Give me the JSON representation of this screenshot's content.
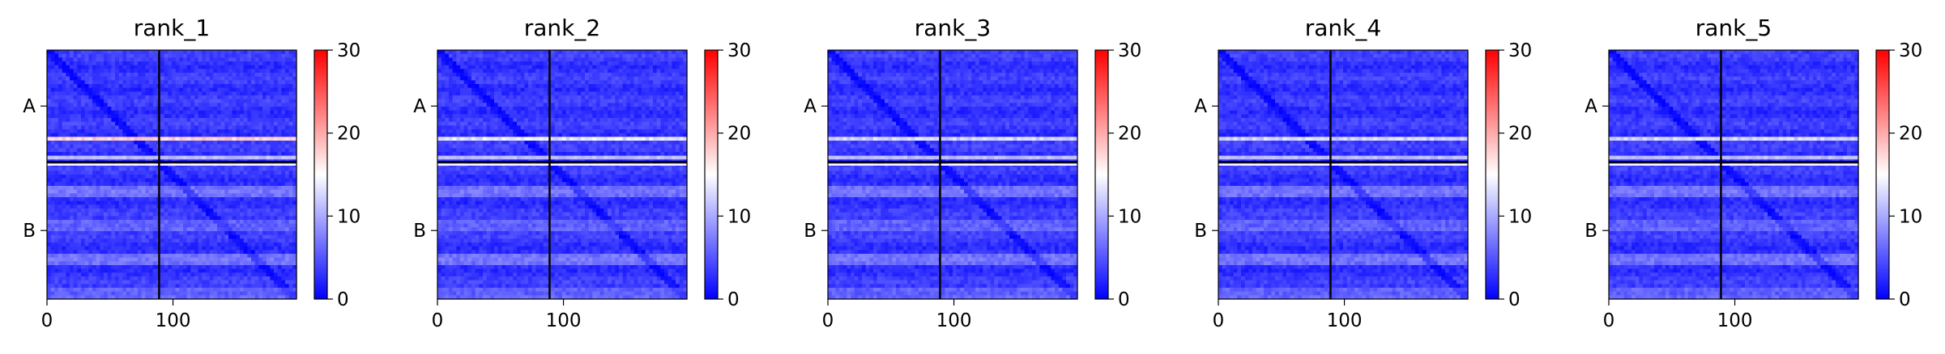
{
  "figure": {
    "panel_count": 5
  },
  "chart_data": [
    {
      "type": "heatmap",
      "title": "rank_1",
      "x_ticks": [
        0,
        100
      ],
      "x_range": [
        0,
        198
      ],
      "y_range": [
        0,
        198
      ],
      "chain_boundary": 89,
      "chain_labels": [
        "A",
        "B"
      ],
      "colorbar": {
        "min": 0,
        "max": 30,
        "ticks": [
          0,
          10,
          20,
          30
        ],
        "colormap": "bwr",
        "colors": [
          "#0000ff",
          "#ffffff",
          "#ff0000"
        ]
      },
      "value_pattern": {
        "background": 2,
        "diagonal": 0,
        "bright_band_row": 71,
        "bright_band_value": 16,
        "interface_row_value": 20,
        "near_boundary_row_value": 10
      }
    },
    {
      "type": "heatmap",
      "title": "rank_2",
      "x_ticks": [
        0,
        100
      ],
      "x_range": [
        0,
        198
      ],
      "y_range": [
        0,
        198
      ],
      "chain_boundary": 89,
      "chain_labels": [
        "A",
        "B"
      ],
      "colorbar": {
        "min": 0,
        "max": 30,
        "ticks": [
          0,
          10,
          20,
          30
        ],
        "colormap": "bwr",
        "colors": [
          "#0000ff",
          "#ffffff",
          "#ff0000"
        ]
      },
      "value_pattern": {
        "background": 2,
        "diagonal": 0,
        "bright_band_row": 71,
        "bright_band_value": 12,
        "interface_row_value": 20,
        "near_boundary_row_value": 10
      }
    },
    {
      "type": "heatmap",
      "title": "rank_3",
      "x_ticks": [
        0,
        100
      ],
      "x_range": [
        0,
        198
      ],
      "y_range": [
        0,
        198
      ],
      "chain_boundary": 89,
      "chain_labels": [
        "A",
        "B"
      ],
      "colorbar": {
        "min": 0,
        "max": 30,
        "ticks": [
          0,
          10,
          20,
          30
        ],
        "colormap": "bwr",
        "colors": [
          "#0000ff",
          "#ffffff",
          "#ff0000"
        ]
      },
      "value_pattern": {
        "background": 2,
        "diagonal": 0,
        "bright_band_row": 71,
        "bright_band_value": 11,
        "interface_row_value": 20,
        "near_boundary_row_value": 10
      }
    },
    {
      "type": "heatmap",
      "title": "rank_4",
      "x_ticks": [
        0,
        100
      ],
      "x_range": [
        0,
        198
      ],
      "y_range": [
        0,
        198
      ],
      "chain_boundary": 89,
      "chain_labels": [
        "A",
        "B"
      ],
      "colorbar": {
        "min": 0,
        "max": 30,
        "ticks": [
          0,
          10,
          20,
          30
        ],
        "colormap": "bwr",
        "colors": [
          "#0000ff",
          "#ffffff",
          "#ff0000"
        ]
      },
      "value_pattern": {
        "background": 2,
        "diagonal": 0,
        "bright_band_row": 71,
        "bright_band_value": 11,
        "interface_row_value": 20,
        "near_boundary_row_value": 10
      }
    },
    {
      "type": "heatmap",
      "title": "rank_5",
      "x_ticks": [
        0,
        100
      ],
      "x_range": [
        0,
        198
      ],
      "y_range": [
        0,
        198
      ],
      "chain_boundary": 89,
      "chain_labels": [
        "A",
        "B"
      ],
      "colorbar": {
        "min": 0,
        "max": 30,
        "ticks": [
          0,
          10,
          20,
          30
        ],
        "colormap": "bwr",
        "colors": [
          "#0000ff",
          "#ffffff",
          "#ff0000"
        ]
      },
      "value_pattern": {
        "background": 2,
        "diagonal": 0,
        "bright_band_row": 71,
        "bright_band_value": 11,
        "interface_row_value": 20,
        "near_boundary_row_value": 10
      }
    }
  ]
}
